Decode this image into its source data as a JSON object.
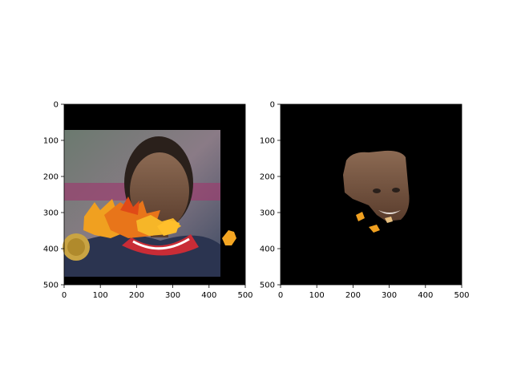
{
  "figure": {
    "background": "#ffffff",
    "image_background": "#000000",
    "axis_color": "#000000"
  },
  "chart_data": [
    {
      "type": "image",
      "title": "",
      "xlabel": "",
      "ylabel": "",
      "xlim": [
        0,
        500
      ],
      "ylim": [
        500,
        0
      ],
      "xticks": [
        0,
        100,
        200,
        300,
        400,
        500
      ],
      "yticks": [
        0,
        100,
        200,
        300,
        400,
        500
      ],
      "content": "Photo of a smiling athlete holding a gold medal with an autumn-leaf overlay across the lower face, on a black canvas"
    },
    {
      "type": "image",
      "title": "",
      "xlabel": "",
      "ylabel": "",
      "xlim": [
        0,
        500
      ],
      "ylim": [
        500,
        0
      ],
      "xticks": [
        0,
        100,
        200,
        300,
        400,
        500
      ],
      "yticks": [
        0,
        100,
        200,
        300,
        400,
        500
      ],
      "content": "Segmented face region only (skin mask) with small leaf fragments, on a black background"
    }
  ]
}
